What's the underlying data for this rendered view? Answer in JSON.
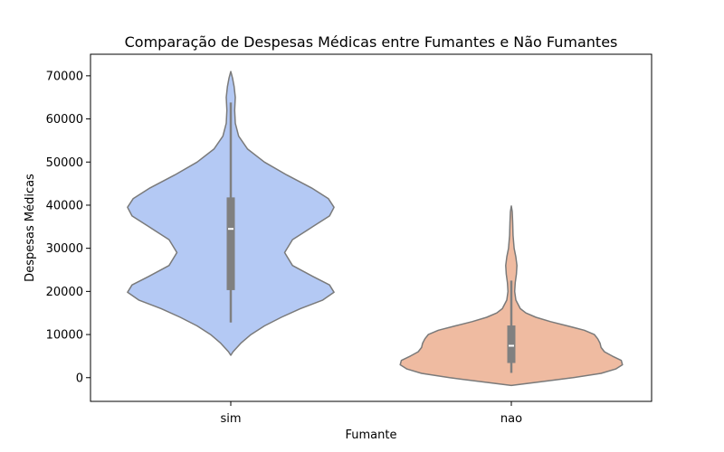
{
  "chart_data": {
    "type": "violin",
    "title": "Comparação de Despesas Médicas entre Fumantes e Não Fumantes",
    "xlabel": "Fumante",
    "ylabel": "Despesas Médicas",
    "categories": [
      "sim",
      "nao"
    ],
    "ylim": [
      -5500,
      75000
    ],
    "yticks": [
      0,
      10000,
      20000,
      30000,
      40000,
      50000,
      60000,
      70000
    ],
    "grid": false,
    "legend": "none",
    "colors": {
      "sim": "#b4c9f4",
      "nao": "#efbba1",
      "outline": "#7a7a7a",
      "box": "#808080",
      "median": "#ffffff"
    },
    "violins": [
      {
        "category": "sim",
        "box": {
          "q1": 20300,
          "median": 34500,
          "q3": 41800,
          "whisker_low": 12800,
          "whisker_high": 63800
        },
        "density": [
          {
            "y": 5200,
            "w": 0.0
          },
          {
            "y": 6000,
            "w": 0.02
          },
          {
            "y": 8000,
            "w": 0.09
          },
          {
            "y": 10000,
            "w": 0.18
          },
          {
            "y": 12000,
            "w": 0.3
          },
          {
            "y": 14000,
            "w": 0.45
          },
          {
            "y": 16000,
            "w": 0.62
          },
          {
            "y": 18000,
            "w": 0.82
          },
          {
            "y": 19800,
            "w": 0.92
          },
          {
            "y": 21500,
            "w": 0.88
          },
          {
            "y": 23500,
            "w": 0.73
          },
          {
            "y": 26000,
            "w": 0.55
          },
          {
            "y": 29000,
            "w": 0.48
          },
          {
            "y": 32000,
            "w": 0.55
          },
          {
            "y": 35000,
            "w": 0.73
          },
          {
            "y": 37500,
            "w": 0.88
          },
          {
            "y": 39500,
            "w": 0.92
          },
          {
            "y": 41500,
            "w": 0.87
          },
          {
            "y": 44000,
            "w": 0.72
          },
          {
            "y": 47000,
            "w": 0.5
          },
          {
            "y": 50000,
            "w": 0.3
          },
          {
            "y": 53000,
            "w": 0.15
          },
          {
            "y": 56000,
            "w": 0.07
          },
          {
            "y": 59000,
            "w": 0.04
          },
          {
            "y": 62000,
            "w": 0.035
          },
          {
            "y": 65000,
            "w": 0.04
          },
          {
            "y": 67500,
            "w": 0.03
          },
          {
            "y": 69500,
            "w": 0.015
          },
          {
            "y": 71000,
            "w": 0.0
          }
        ]
      },
      {
        "category": "nao",
        "box": {
          "q1": 3400,
          "median": 7400,
          "q3": 12100,
          "whisker_low": 1100,
          "whisker_high": 22500
        },
        "density": [
          {
            "y": -1800,
            "w": 0.0
          },
          {
            "y": -1000,
            "w": 0.25
          },
          {
            "y": 0,
            "w": 0.55
          },
          {
            "y": 1000,
            "w": 0.8
          },
          {
            "y": 2000,
            "w": 0.93
          },
          {
            "y": 3000,
            "w": 0.99
          },
          {
            "y": 4000,
            "w": 0.98
          },
          {
            "y": 5000,
            "w": 0.9
          },
          {
            "y": 6000,
            "w": 0.83
          },
          {
            "y": 7000,
            "w": 0.8
          },
          {
            "y": 8000,
            "w": 0.79
          },
          {
            "y": 9000,
            "w": 0.77
          },
          {
            "y": 10000,
            "w": 0.74
          },
          {
            "y": 11000,
            "w": 0.65
          },
          {
            "y": 12000,
            "w": 0.5
          },
          {
            "y": 13000,
            "w": 0.35
          },
          {
            "y": 14000,
            "w": 0.22
          },
          {
            "y": 15000,
            "w": 0.13
          },
          {
            "y": 16000,
            "w": 0.08
          },
          {
            "y": 18000,
            "w": 0.04
          },
          {
            "y": 20000,
            "w": 0.03
          },
          {
            "y": 22000,
            "w": 0.035
          },
          {
            "y": 24000,
            "w": 0.045
          },
          {
            "y": 26000,
            "w": 0.05
          },
          {
            "y": 28000,
            "w": 0.04
          },
          {
            "y": 30000,
            "w": 0.025
          },
          {
            "y": 33000,
            "w": 0.015
          },
          {
            "y": 36000,
            "w": 0.012
          },
          {
            "y": 38500,
            "w": 0.008
          },
          {
            "y": 39800,
            "w": 0.0
          }
        ]
      }
    ]
  }
}
